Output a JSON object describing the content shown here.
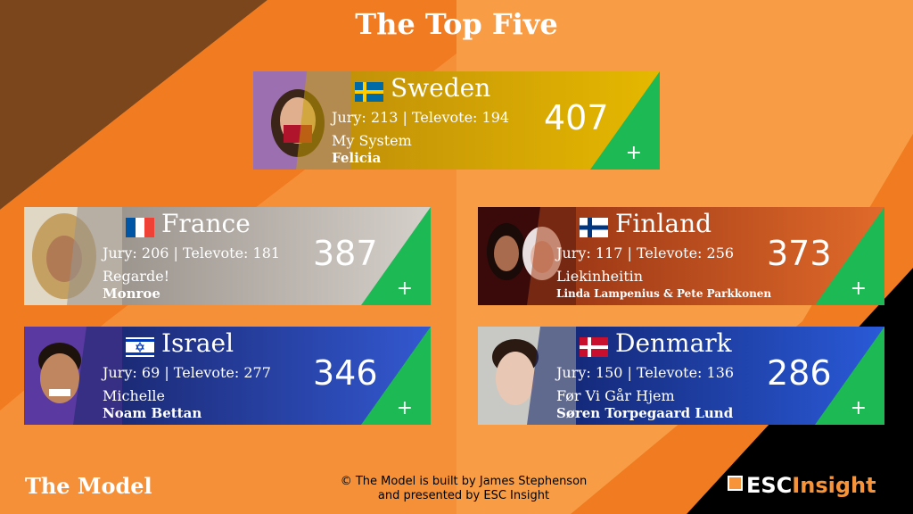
{
  "title": "The Top Five",
  "footer": {
    "model_label": "The Model",
    "credit_line1": "© The Model is built by James Stephenson",
    "credit_line2": "and presented by ESC Insight",
    "logo_esc": "ESC",
    "logo_insight": "Insight"
  },
  "cards": {
    "sweden": {
      "country": "Sweden",
      "scores": "Jury: 213 | Televote: 194",
      "total": "407",
      "song": "My System",
      "artist": "Felicia",
      "plus": "+"
    },
    "france": {
      "country": "France",
      "scores": "Jury: 206 | Televote: 181",
      "total": "387",
      "song": "Regarde!",
      "artist": "Monroe",
      "plus": "+"
    },
    "finland": {
      "country": "Finland",
      "scores": "Jury: 117 | Televote: 256",
      "total": "373",
      "song": "Liekinheitin",
      "artist": "Linda Lampenius & Pete Parkkonen",
      "plus": "+"
    },
    "israel": {
      "country": "Israel",
      "scores": "Jury: 69 | Televote: 277",
      "total": "346",
      "song": "Michelle",
      "artist": "Noam Bettan",
      "plus": "+"
    },
    "denmark": {
      "country": "Denmark",
      "scores": "Jury: 150 | Televote: 136",
      "total": "286",
      "song": "Før Vi Går Hjem",
      "artist": "Søren Torpegaard Lund",
      "plus": "+"
    }
  },
  "colors": {
    "orange": "#f7943a",
    "orange_dark": "#f07b20",
    "green": "#1db954",
    "sweden_band": "#d8a400",
    "france_band": "#b3aca4",
    "finland_band": "#c8531a",
    "israel_band": "#2844a8",
    "denmark_band": "#2a52c8"
  },
  "icons": [
    "sweden-flag-icon",
    "france-flag-icon",
    "finland-flag-icon",
    "israel-flag-icon",
    "denmark-flag-icon",
    "plus-icon"
  ]
}
